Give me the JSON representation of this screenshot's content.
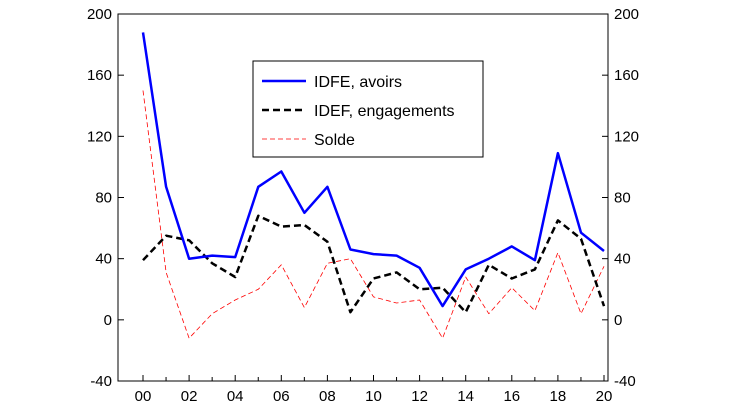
{
  "chart_data": {
    "type": "line",
    "x": [
      "00",
      "01",
      "02",
      "03",
      "04",
      "05",
      "06",
      "07",
      "08",
      "09",
      "10",
      "11",
      "12",
      "13",
      "14",
      "15",
      "16",
      "17",
      "18",
      "19",
      "20"
    ],
    "xtick_labels": [
      "00",
      "02",
      "04",
      "06",
      "08",
      "10",
      "12",
      "14",
      "16",
      "18",
      "20"
    ],
    "ylim": [
      -40,
      200
    ],
    "yticks": [
      -40,
      0,
      40,
      80,
      120,
      160,
      200
    ],
    "ytick_labels": [
      "-40",
      "0",
      "40",
      "80",
      "120",
      "160",
      "200"
    ],
    "grid": false,
    "legend_position": "top-center",
    "series": [
      {
        "name": "IDFE, avoirs",
        "color": "#0000ff",
        "style": "solid",
        "values": [
          188,
          87,
          40,
          42,
          41,
          87,
          97,
          70,
          87,
          46,
          43,
          42,
          34,
          9,
          33,
          40,
          48,
          39,
          109,
          57,
          45
        ]
      },
      {
        "name": "IDEF, engagements",
        "color": "#000000",
        "style": "dashed",
        "values": [
          39,
          55,
          52,
          37,
          28,
          68,
          61,
          62,
          51,
          5,
          27,
          31,
          20,
          21,
          5,
          36,
          27,
          33,
          65,
          53,
          9
        ]
      },
      {
        "name": "Solde",
        "color": "#ff0000",
        "style": "thin-dashed",
        "values": [
          150,
          31,
          -12,
          4,
          13,
          20,
          36,
          8,
          37,
          40,
          15,
          11,
          13,
          -12,
          28,
          4,
          21,
          6,
          44,
          4,
          35
        ]
      }
    ]
  }
}
